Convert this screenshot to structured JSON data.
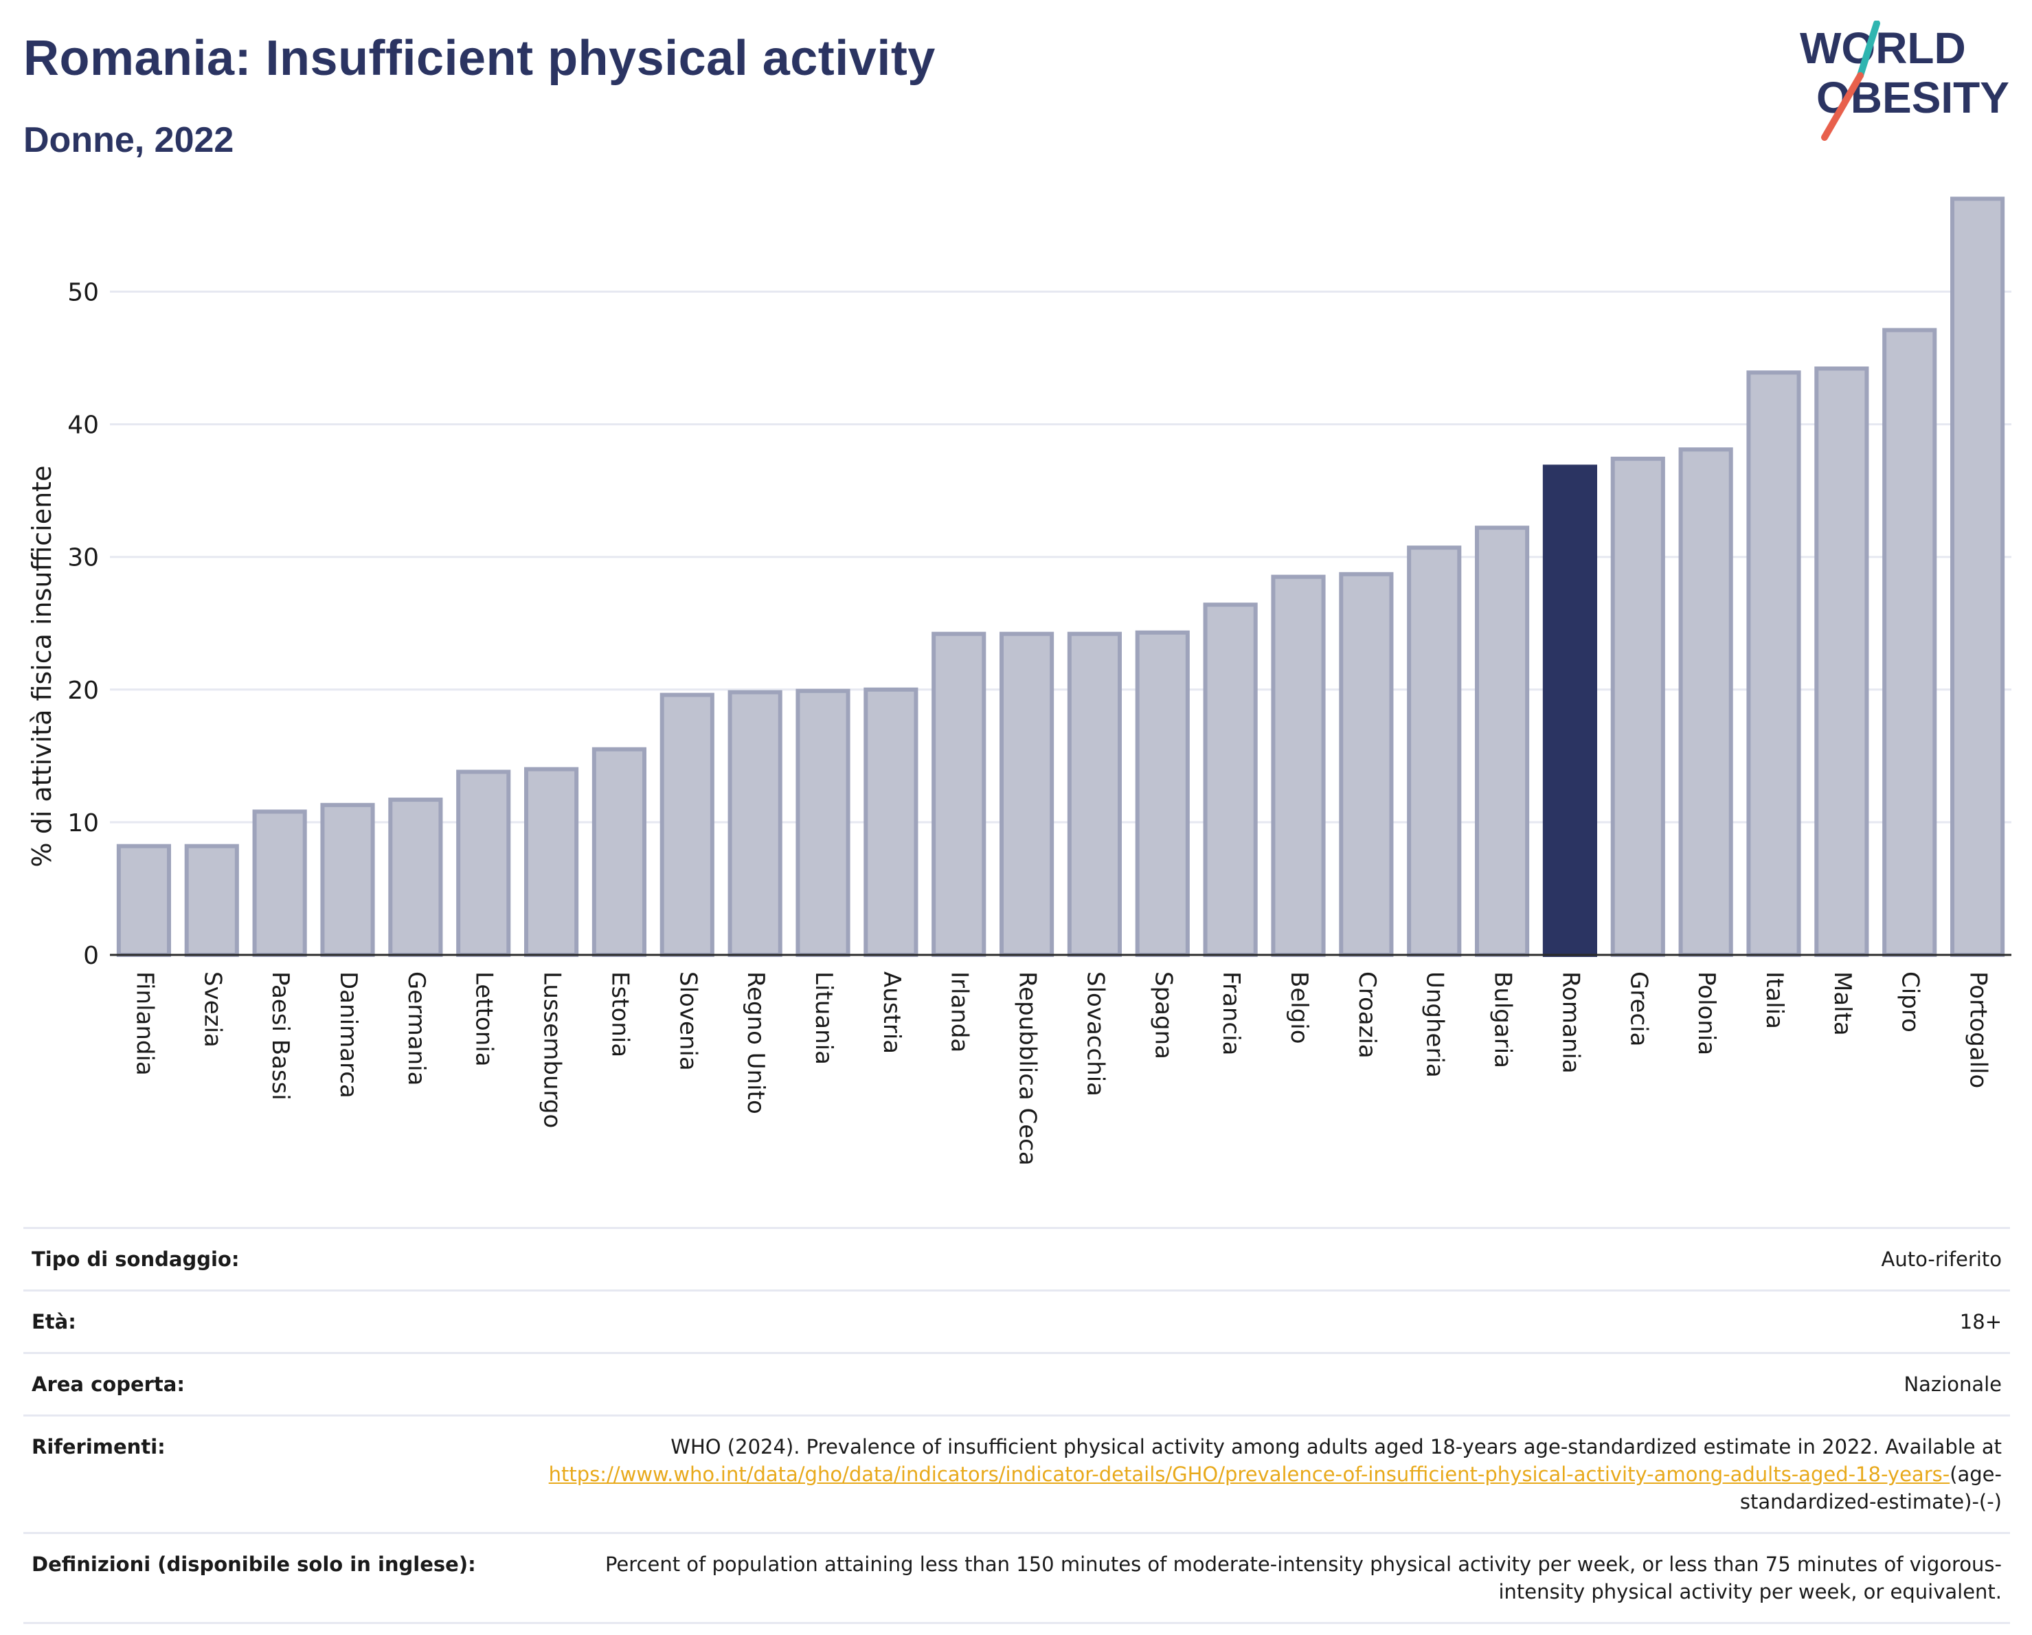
{
  "header": {
    "title": "Romania: Insufficient physical activity",
    "subtitle": "Donne, 2022"
  },
  "logo": {
    "line1": "WORLD",
    "line2": "OBESITY",
    "accent_colors": [
      "#2fb5b0",
      "#e8604c"
    ]
  },
  "colors": {
    "bar_default": "#bfc2d0",
    "bar_border": "#9ea3bb",
    "bar_highlight": "#2b3462",
    "axis_text": "#1a1a1a",
    "grid": "#e6e8f1",
    "link": "#e8a91b"
  },
  "chart_data": {
    "type": "bar",
    "title": "Romania: Insufficient physical activity",
    "subtitle": "Donne, 2022",
    "ylabel": "% di attività fisica insufficiente",
    "xlabel": "",
    "ylim": [
      0,
      58
    ],
    "yticks": [
      0,
      10,
      20,
      30,
      40,
      50
    ],
    "grid": true,
    "highlight": "Romania",
    "categories": [
      "Finlandia",
      "Svezia",
      "Paesi Bassi",
      "Danimarca",
      "Germania",
      "Lettonia",
      "Lussemburgo",
      "Estonia",
      "Slovenia",
      "Regno Unito",
      "Lituania",
      "Austria",
      "Irlanda",
      "Repubblica Ceca",
      "Slovacchia",
      "Spagna",
      "Francia",
      "Belgio",
      "Croazia",
      "Ungheria",
      "Bulgaria",
      "Romania",
      "Grecia",
      "Polonia",
      "Italia",
      "Malta",
      "Cipro",
      "Portogallo"
    ],
    "values": [
      8.2,
      8.2,
      10.8,
      11.3,
      11.7,
      13.8,
      14.0,
      15.5,
      19.6,
      19.8,
      19.9,
      20.0,
      24.2,
      24.2,
      24.2,
      24.3,
      26.4,
      28.5,
      28.7,
      30.7,
      32.2,
      36.8,
      37.4,
      38.1,
      43.9,
      44.2,
      47.1,
      57.0
    ]
  },
  "info": {
    "rows": [
      {
        "label": "Tipo di sondaggio:",
        "value": "Auto-riferito"
      },
      {
        "label": "Età:",
        "value": "18+"
      },
      {
        "label": "Area coperta:",
        "value": "Nazionale"
      }
    ],
    "references": {
      "label": "Riferimenti:",
      "text": "WHO (2024). Prevalence of insufficient physical activity among adults aged 18-years age-standardized estimate in 2022. Available at",
      "link": "https://www.who.int/data/gho/data/indicators/indicator-details/GHO/prevalence-of-insufficient-physical-activity-among-adults-aged-18-years-",
      "suffix": "(age-standardized-estimate)-(-)"
    },
    "definitions": {
      "label": "Definizioni (disponibile solo in inglese):",
      "text": "Percent of population attaining less than 150 minutes of moderate-intensity physical activity per week, or less than 75 minutes of vigorous-intensity physical activity per week, or equivalent."
    }
  }
}
